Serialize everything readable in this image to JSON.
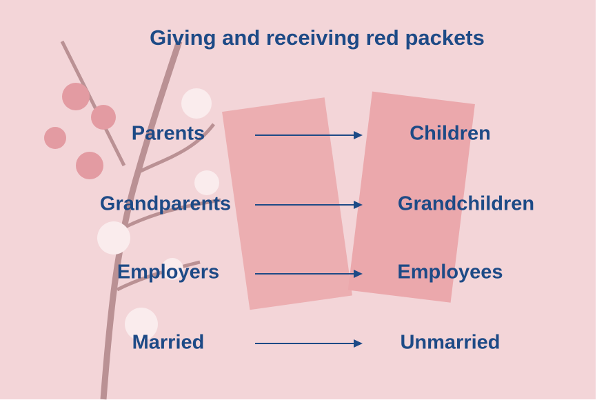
{
  "title": "Giving and receiving red packets",
  "rows": [
    {
      "from": "Parents",
      "to": "Children"
    },
    {
      "from": "Grandparents",
      "to": "Grandchildren"
    },
    {
      "from": "Employers",
      "to": "Employees"
    },
    {
      "from": "Married",
      "to": "Unmarried"
    }
  ]
}
